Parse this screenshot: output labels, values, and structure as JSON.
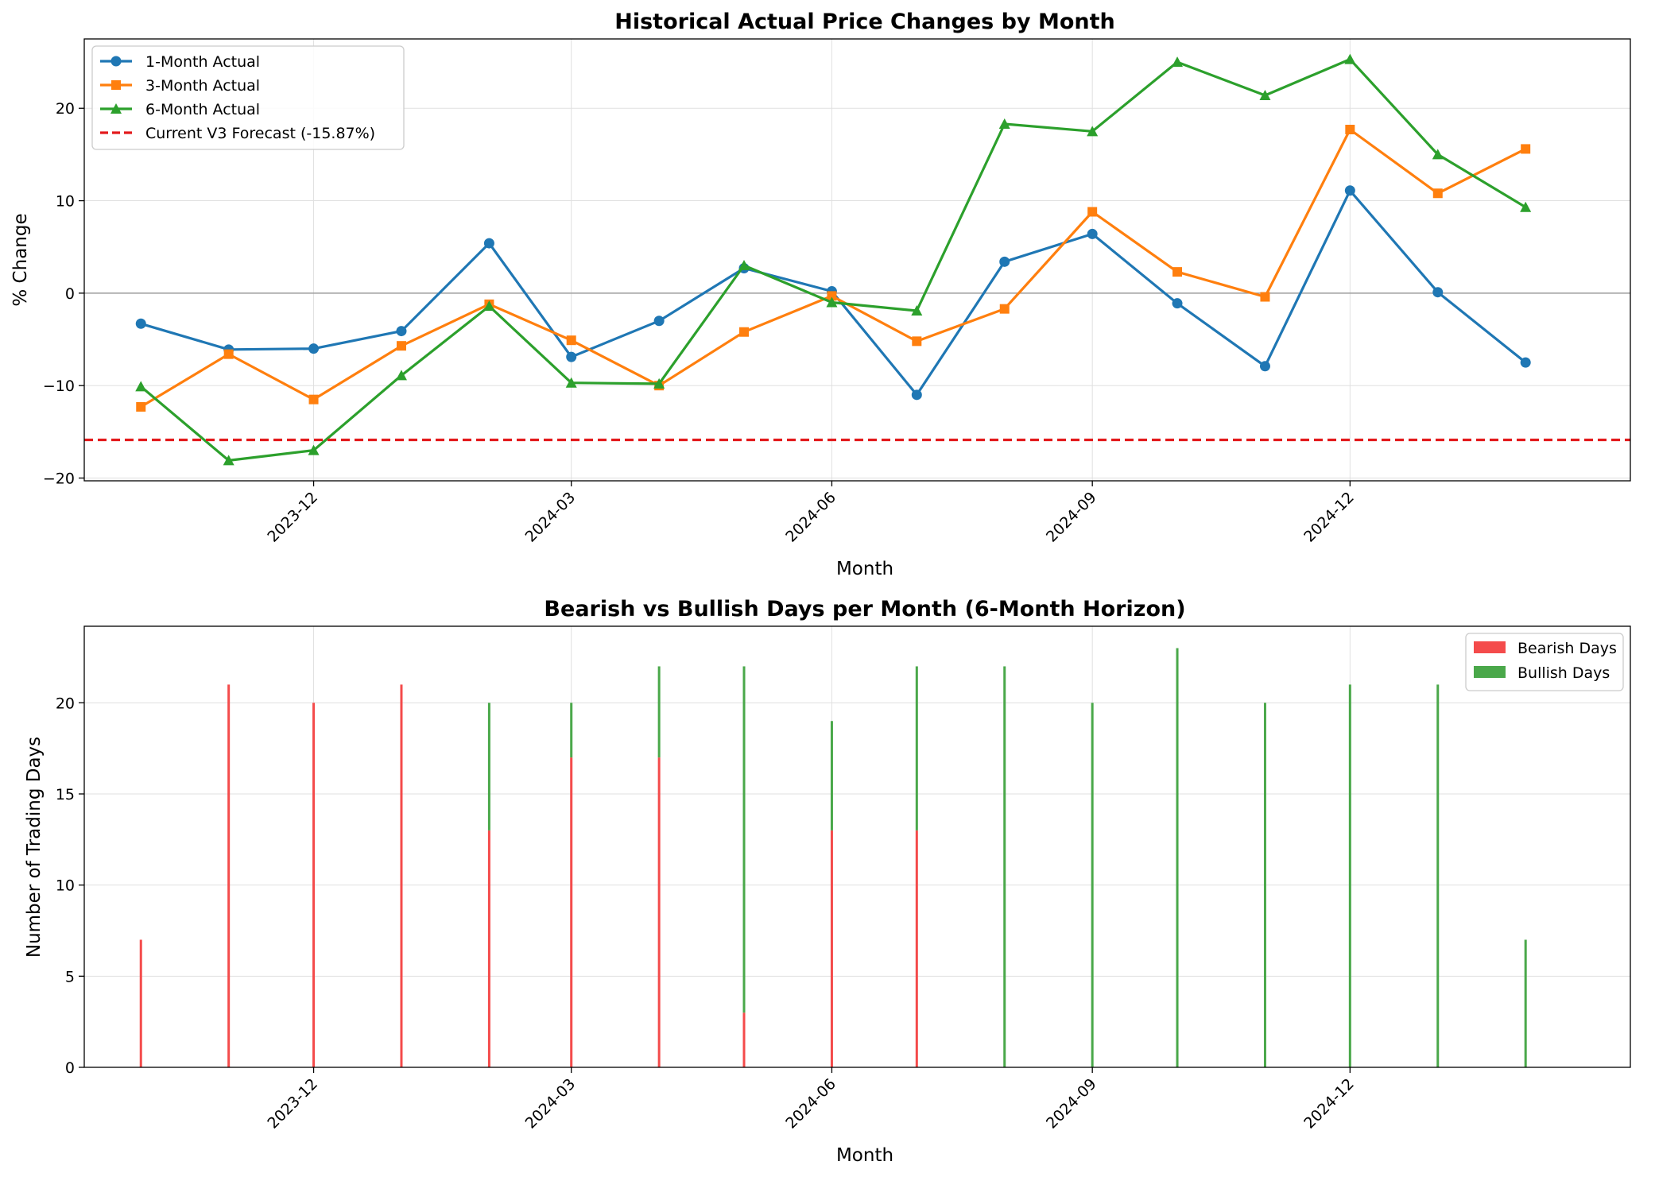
{
  "colors": {
    "one_month": "#1f77b4",
    "three_month": "#ff7f0e",
    "six_month": "#2ca02c",
    "forecast": "#e31a1c",
    "bearish": "#f44b4b",
    "bullish": "#4aa84a",
    "zero_line": "#9e9e9e",
    "grid": "#e0e0e0"
  },
  "chart_data": [
    {
      "type": "line",
      "title": "Historical Actual Price Changes by Month",
      "xlabel": "Month",
      "ylabel": "% Change",
      "x": [
        "2023-10",
        "2023-11",
        "2023-12",
        "2024-01",
        "2024-02",
        "2024-03",
        "2024-04",
        "2024-05",
        "2024-06",
        "2024-07",
        "2024-08",
        "2024-09",
        "2024-10",
        "2024-11",
        "2024-12",
        "2025-01",
        "2025-02"
      ],
      "xticks": [
        "2023-12",
        "2024-03",
        "2024-06",
        "2024-09",
        "2024-12"
      ],
      "xlim": [
        "2023-09-11",
        "2025-03-10"
      ],
      "ylim": [
        -20.3,
        27.5
      ],
      "yticks": [
        -20,
        -10,
        0,
        10,
        20
      ],
      "grid": true,
      "legend": "top-left",
      "series": [
        {
          "name": "1-Month Actual",
          "marker": "circle",
          "values": [
            -3.3,
            -6.1,
            -6.0,
            -4.1,
            5.4,
            -6.9,
            -3.0,
            2.7,
            0.2,
            -11.0,
            3.4,
            6.4,
            -1.1,
            -7.9,
            11.1,
            0.1,
            -7.5
          ]
        },
        {
          "name": "3-Month Actual",
          "marker": "square",
          "values": [
            -12.3,
            -6.6,
            -11.5,
            -5.7,
            -1.2,
            -5.1,
            -10.0,
            -4.2,
            -0.3,
            -5.2,
            -1.7,
            8.8,
            2.3,
            -0.4,
            17.7,
            10.8,
            15.6
          ]
        },
        {
          "name": "6-Month Actual",
          "marker": "triangle",
          "values": [
            -10.1,
            -18.1,
            -17.0,
            -8.9,
            -1.4,
            -9.7,
            -9.8,
            3.0,
            -1.0,
            -1.9,
            18.3,
            17.5,
            25.0,
            21.4,
            25.3,
            15.0,
            9.3
          ]
        }
      ],
      "reference_line": {
        "name": "Current V3 Forecast (-15.87%)",
        "y": -15.87,
        "style": "dashed"
      }
    },
    {
      "type": "bar",
      "stacked": true,
      "title": "Bearish vs Bullish Days per Month (6-Month Horizon)",
      "xlabel": "Month",
      "ylabel": "Number of Trading Days",
      "x": [
        "2023-10",
        "2023-11",
        "2023-12",
        "2024-01",
        "2024-02",
        "2024-03",
        "2024-04",
        "2024-05",
        "2024-06",
        "2024-07",
        "2024-08",
        "2024-09",
        "2024-10",
        "2024-11",
        "2024-12",
        "2025-01",
        "2025-02"
      ],
      "xticks": [
        "2023-12",
        "2024-03",
        "2024-06",
        "2024-09",
        "2024-12"
      ],
      "xlim": [
        "2023-09-11",
        "2025-03-10"
      ],
      "ylim": [
        0,
        24.2
      ],
      "yticks": [
        0,
        5,
        10,
        15,
        20
      ],
      "grid": true,
      "legend": "top-right",
      "series": [
        {
          "name": "Bearish Days",
          "values": [
            7,
            21,
            20,
            21,
            13,
            17,
            17,
            3,
            13,
            13,
            0,
            0,
            0,
            0,
            0,
            0,
            0
          ]
        },
        {
          "name": "Bullish Days",
          "values": [
            0,
            0,
            0,
            0,
            7,
            3,
            5,
            19,
            6,
            9,
            22,
            20,
            23,
            20,
            21,
            21,
            7
          ]
        }
      ]
    }
  ]
}
